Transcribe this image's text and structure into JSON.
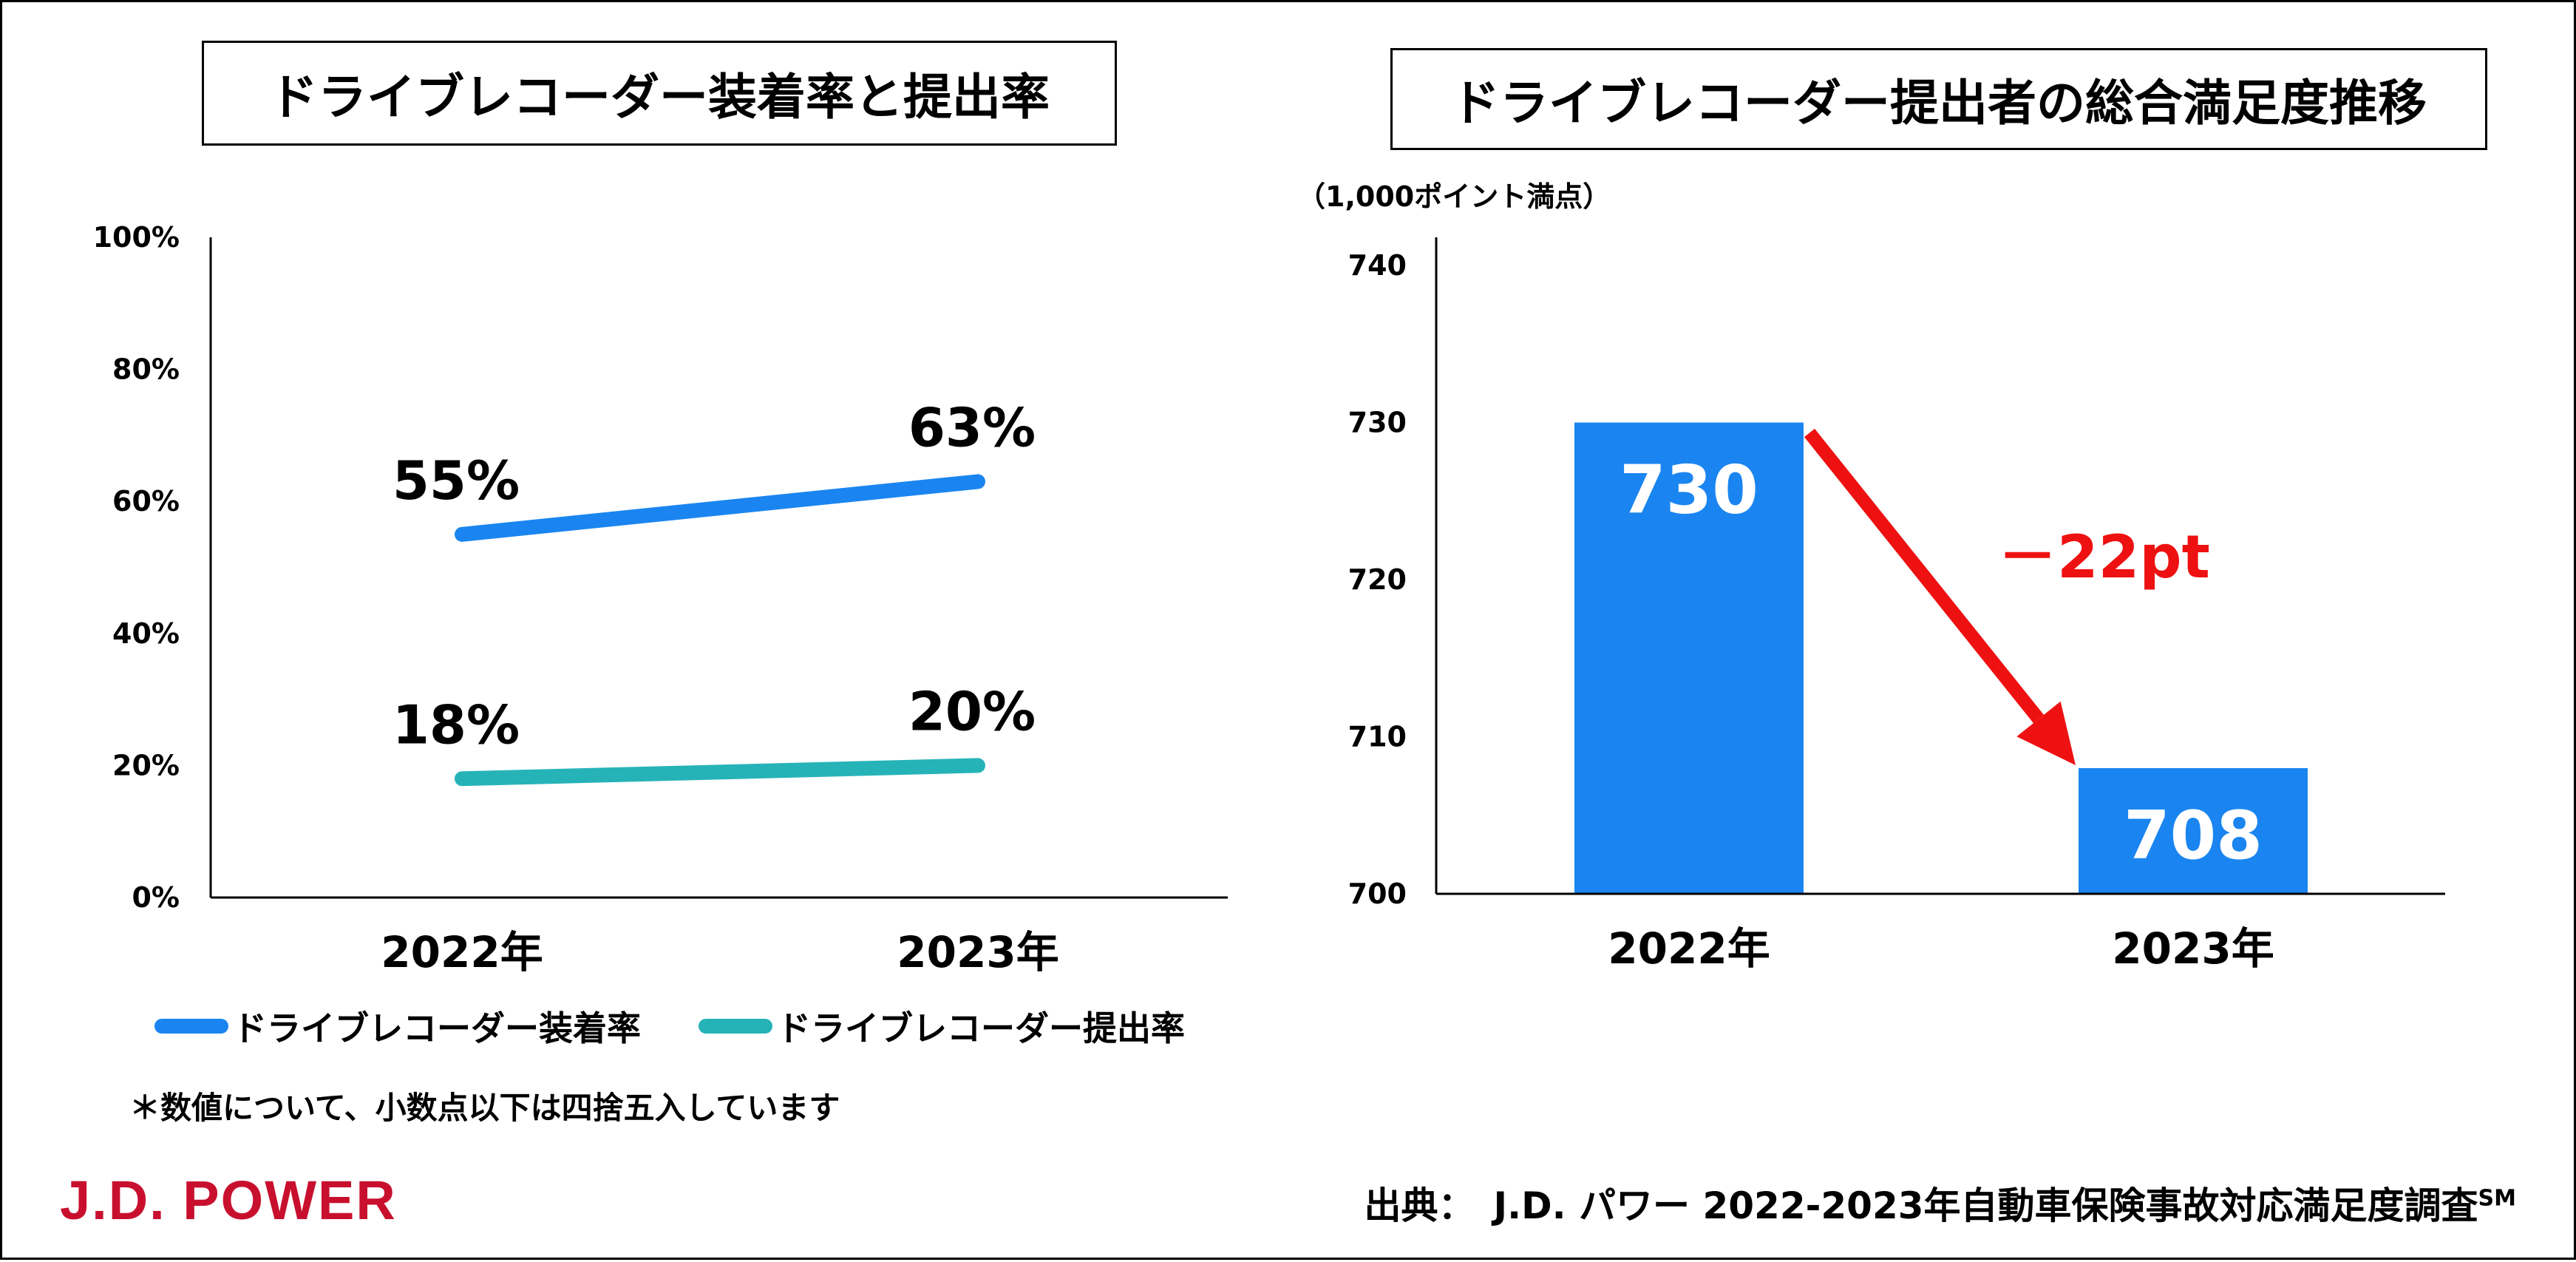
{
  "chart_data": [
    {
      "type": "line",
      "title": "ドライブレコーダー装着率と提出率",
      "categories": [
        "2022年",
        "2023年"
      ],
      "y_ticks": [
        "0%",
        "20%",
        "40%",
        "60%",
        "80%",
        "100%"
      ],
      "ylim": [
        0,
        100
      ],
      "series": [
        {
          "name": "ドライブレコーダー装着率",
          "values": [
            55,
            63
          ],
          "labels": [
            "55%",
            "63%"
          ],
          "color": "#1a85f0"
        },
        {
          "name": "ドライブレコーダー提出率",
          "values": [
            18,
            20
          ],
          "labels": [
            "18%",
            "20%"
          ],
          "color": "#26b3b8"
        }
      ],
      "note": "＊数値について、小数点以下は四捨五入しています"
    },
    {
      "type": "bar",
      "title": "ドライブレコーダー提出者の総合満足度推移",
      "unit_label": "（1,000ポイント満点）",
      "categories": [
        "2022年",
        "2023年"
      ],
      "values": [
        730,
        708
      ],
      "labels": [
        "730",
        "708"
      ],
      "y_ticks": [
        "700",
        "710",
        "720",
        "730",
        "740"
      ],
      "ylim": [
        700,
        740
      ],
      "bar_color": "#1a85f0",
      "annotation": {
        "text": "－22pt",
        "color": "#ee1111"
      }
    }
  ],
  "footer": {
    "logo": "J.D. POWER",
    "logo_color": "#c8102e",
    "source": "出典：　J.D. パワー 2022-2023年自動車保険事故対応満足度調査",
    "source_sup": "SM"
  }
}
